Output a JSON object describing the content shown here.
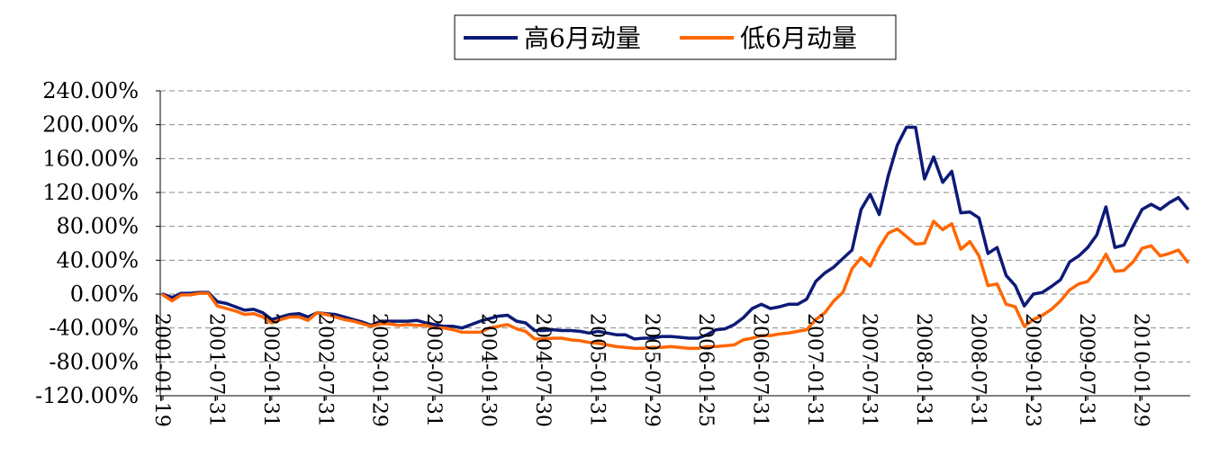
{
  "chart_data": {
    "type": "line",
    "title": "",
    "xlabel": "",
    "ylabel": "",
    "ylim": [
      -120,
      240
    ],
    "yticks": [
      "240.00%",
      "200.00%",
      "160.00%",
      "120.00%",
      "80.00%",
      "40.00%",
      "0.00%",
      "-40.00%",
      "-80.00%",
      "-120.00%"
    ],
    "ytick_values": [
      240,
      200,
      160,
      120,
      80,
      40,
      0,
      -40,
      -80,
      -120
    ],
    "grid": true,
    "legend_position": "top-center",
    "xtick_labels": [
      "2001-01-19",
      "2001-07-31",
      "2002-01-31",
      "2002-07-31",
      "2003-01-29",
      "2003-07-31",
      "2004-01-30",
      "2004-07-30",
      "2005-01-31",
      "2005-07-29",
      "2006-01-25",
      "2006-07-31",
      "2007-01-31",
      "2007-07-31",
      "2008-01-31",
      "2008-07-31",
      "2009-01-23",
      "2009-07-31",
      "2010-01-29"
    ],
    "xtick_positions": [
      0,
      6,
      12,
      18,
      24,
      30,
      36,
      42,
      48,
      54,
      60,
      66,
      72,
      78,
      84,
      90,
      96,
      102,
      108
    ],
    "n_points": 114,
    "series": [
      {
        "name": "高6月动量",
        "color": "#0d1a78",
        "values": [
          0,
          -4,
          1,
          1,
          2,
          2,
          -9,
          -11,
          -15,
          -19,
          -18,
          -22,
          -30,
          -27,
          -24,
          -23,
          -27,
          -22,
          -23,
          -24,
          -27,
          -30,
          -33,
          -37,
          -32,
          -32,
          -32,
          -32,
          -31,
          -34,
          -36,
          -38,
          -38,
          -40,
          -36,
          -32,
          -29,
          -26,
          -25,
          -32,
          -34,
          -43,
          -43,
          -42,
          -43,
          -43,
          -44,
          -46,
          -44,
          -46,
          -48,
          -48,
          -53,
          -52,
          -52,
          -50,
          -50,
          -51,
          -52,
          -52,
          -48,
          -42,
          -41,
          -36,
          -28,
          -17,
          -12,
          -17,
          -15,
          -12,
          -12,
          -6,
          15,
          25,
          32,
          42,
          52,
          100,
          118,
          94,
          140,
          176,
          197,
          197,
          136,
          162,
          132,
          145,
          96,
          97,
          90,
          48,
          55,
          22,
          10,
          -14,
          0,
          2,
          9,
          17,
          38,
          45,
          55,
          70,
          103,
          55,
          58,
          80,
          100,
          106,
          100,
          108,
          114,
          101
        ]
      },
      {
        "name": "低6月动量",
        "color": "#ff6600",
        "values": [
          -1,
          -8,
          -1,
          -1,
          1,
          1,
          -14,
          -17,
          -20,
          -24,
          -23,
          -27,
          -34,
          -30,
          -27,
          -27,
          -31,
          -22,
          -24,
          -27,
          -30,
          -32,
          -35,
          -38,
          -35,
          -35,
          -37,
          -36,
          -37,
          -37,
          -40,
          -40,
          -42,
          -45,
          -45,
          -45,
          -40,
          -38,
          -36,
          -41,
          -44,
          -53,
          -53,
          -52,
          -52,
          -54,
          -55,
          -57,
          -58,
          -60,
          -62,
          -63,
          -64,
          -64,
          -63,
          -63,
          -62,
          -63,
          -64,
          -64,
          -62,
          -62,
          -61,
          -60,
          -54,
          -52,
          -49,
          -49,
          -47,
          -46,
          -44,
          -42,
          -30,
          -22,
          -8,
          2,
          30,
          43,
          33,
          55,
          72,
          77,
          68,
          59,
          60,
          86,
          76,
          83,
          53,
          62,
          45,
          10,
          12,
          -12,
          -15,
          -38,
          -30,
          -25,
          -18,
          -8,
          5,
          12,
          15,
          28,
          47,
          27,
          28,
          38,
          54,
          57,
          45,
          48,
          52,
          38
        ]
      }
    ]
  }
}
